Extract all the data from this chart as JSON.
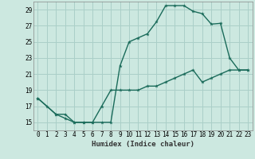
{
  "xlabel": "Humidex (Indice chaleur)",
  "bg_color": "#cce8e0",
  "grid_color": "#aacfc8",
  "line_color": "#1a6b5a",
  "xlim": [
    -0.5,
    23.5
  ],
  "ylim": [
    14.0,
    30.0
  ],
  "xticks": [
    0,
    1,
    2,
    3,
    4,
    5,
    6,
    7,
    8,
    9,
    10,
    11,
    12,
    13,
    14,
    15,
    16,
    17,
    18,
    19,
    20,
    21,
    22,
    23
  ],
  "yticks": [
    15,
    17,
    19,
    21,
    23,
    25,
    27,
    29
  ],
  "line1_x": [
    0,
    1,
    2,
    3,
    4,
    5,
    6,
    7,
    8,
    9,
    10,
    11,
    12,
    13,
    14,
    15,
    16,
    17,
    18,
    19,
    20,
    21,
    22,
    23
  ],
  "line1_y": [
    18,
    17,
    16,
    15.5,
    15,
    15,
    15,
    15,
    15,
    22,
    25,
    25.5,
    26,
    27.5,
    29.5,
    29.5,
    29.5,
    28.8,
    28.5,
    27.2,
    27.3,
    23.0,
    21.5,
    21.5
  ],
  "line2_x": [
    0,
    2,
    3,
    4,
    5,
    6,
    7,
    8,
    9,
    10,
    11,
    12,
    13,
    14,
    15,
    16,
    17,
    18,
    19,
    20,
    21,
    22,
    23
  ],
  "line2_y": [
    18,
    16,
    16,
    15,
    15,
    15,
    17,
    19,
    19,
    19,
    19,
    19.5,
    19.5,
    20,
    20.5,
    21,
    21.5,
    20,
    20.5,
    21,
    21.5,
    21.5,
    21.5
  ]
}
